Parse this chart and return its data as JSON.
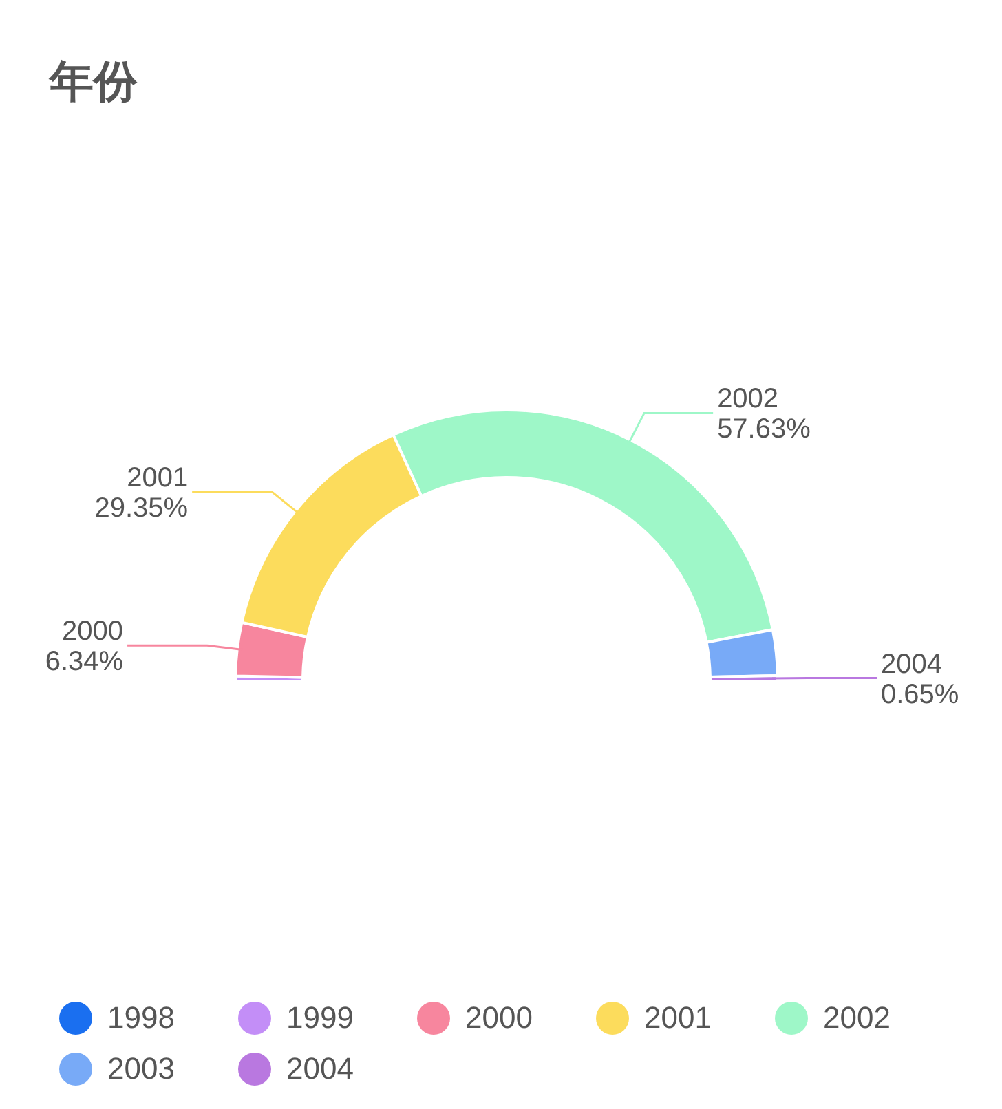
{
  "chart_data": {
    "type": "donut",
    "title": "年份",
    "categories": [
      "1998",
      "1999",
      "2000",
      "2001",
      "2002",
      "2003",
      "2004"
    ],
    "values": [
      0,
      0.6,
      6.34,
      29.35,
      57.63,
      5.43,
      0.65
    ],
    "value_labels": [
      null,
      null,
      "6.34%",
      "29.35%",
      "57.63%",
      null,
      "0.65%"
    ],
    "colors": [
      "#1a6ff0",
      "#c38ef7",
      "#f7869e",
      "#fcdc5c",
      "#9ef7c8",
      "#78aaf7",
      "#b978e0"
    ],
    "legend": "bottom"
  }
}
